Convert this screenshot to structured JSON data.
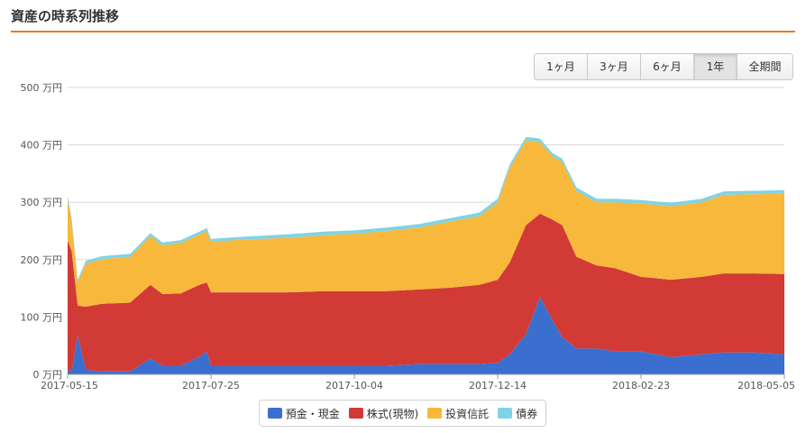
{
  "header": {
    "title": "資産の時系列推移"
  },
  "range_selector": {
    "buttons": [
      {
        "label": "1ヶ月",
        "active": false
      },
      {
        "label": "3ヶ月",
        "active": false
      },
      {
        "label": "6ヶ月",
        "active": false
      },
      {
        "label": "1年",
        "active": true
      },
      {
        "label": "全期間",
        "active": false
      }
    ]
  },
  "colors": {
    "cash": "#3a6fd0",
    "stocks": "#d23a36",
    "funds": "#f7b83c",
    "bonds": "#7fd3e6",
    "grid": "#d8d8d8",
    "accent": "#e87b1e"
  },
  "chart_data": {
    "type": "area",
    "stacked": true,
    "title": "",
    "xlabel": "",
    "ylabel": "",
    "ylim": [
      0,
      500
    ],
    "y_ticks": [
      0,
      100,
      200,
      300,
      400,
      500
    ],
    "y_tick_labels": [
      "0 万円",
      "100 万円",
      "200 万円",
      "300 万円",
      "400 万円",
      "500 万円"
    ],
    "x_ticks": [
      "2017-05-15",
      "2017-07-25",
      "2017-10-04",
      "2017-12-14",
      "2018-02-23",
      "2018-05-05"
    ],
    "x_range": [
      "2017-05-15",
      "2018-05-05"
    ],
    "grid": true,
    "legend_position": "bottom",
    "x": [
      "2017-05-15",
      "2017-05-17",
      "2017-05-20",
      "2017-05-24",
      "2017-06-01",
      "2017-06-15",
      "2017-06-25",
      "2017-07-01",
      "2017-07-10",
      "2017-07-20",
      "2017-07-23",
      "2017-07-25",
      "2017-08-10",
      "2017-09-01",
      "2017-09-20",
      "2017-10-04",
      "2017-10-20",
      "2017-11-05",
      "2017-11-20",
      "2017-12-05",
      "2017-12-14",
      "2017-12-20",
      "2017-12-28",
      "2018-01-04",
      "2018-01-10",
      "2018-01-15",
      "2018-01-22",
      "2018-02-01",
      "2018-02-10",
      "2018-02-23",
      "2018-03-10",
      "2018-03-25",
      "2018-04-05",
      "2018-04-20",
      "2018-05-05"
    ],
    "series": [
      {
        "name": "預金・現金",
        "values": [
          8,
          5,
          68,
          8,
          5,
          5,
          28,
          15,
          15,
          32,
          40,
          15,
          15,
          15,
          15,
          15,
          15,
          18,
          18,
          18,
          20,
          35,
          70,
          135,
          95,
          65,
          45,
          45,
          40,
          40,
          30,
          35,
          38,
          38,
          35
        ]
      },
      {
        "name": "株式(現物)",
        "values": [
          225,
          210,
          52,
          110,
          118,
          120,
          128,
          125,
          126,
          125,
          120,
          128,
          128,
          128,
          130,
          130,
          130,
          130,
          133,
          138,
          145,
          160,
          190,
          145,
          175,
          195,
          160,
          145,
          145,
          130,
          135,
          135,
          138,
          138,
          140
        ]
      },
      {
        "name": "投資信託",
        "values": [
          72,
          52,
          40,
          75,
          78,
          80,
          85,
          85,
          88,
          88,
          90,
          88,
          92,
          95,
          98,
          100,
          105,
          108,
          115,
          120,
          135,
          165,
          148,
          125,
          110,
          110,
          115,
          110,
          115,
          128,
          128,
          130,
          137,
          138,
          140
        ]
      },
      {
        "name": "債券",
        "values": [
          5,
          5,
          5,
          5,
          5,
          5,
          5,
          5,
          5,
          5,
          5,
          5,
          5,
          6,
          6,
          6,
          6,
          6,
          6,
          6,
          6,
          6,
          6,
          6,
          6,
          6,
          6,
          6,
          6,
          6,
          6,
          6,
          6,
          6,
          6
        ]
      }
    ]
  },
  "legend": [
    {
      "label": "預金・現金",
      "color_key": "cash"
    },
    {
      "label": "株式(現物)",
      "color_key": "stocks"
    },
    {
      "label": "投資信託",
      "color_key": "funds"
    },
    {
      "label": "債券",
      "color_key": "bonds"
    }
  ]
}
